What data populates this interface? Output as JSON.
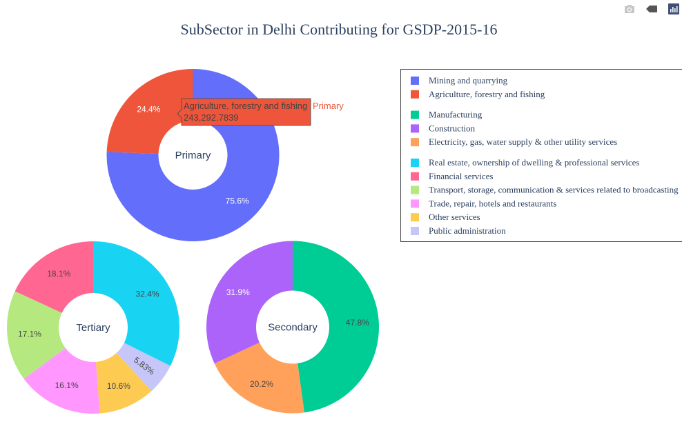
{
  "toolbar": {
    "icons": [
      "camera-icon",
      "tag-icon",
      "plotly-logo-icon"
    ]
  },
  "chart_data": {
    "type": "pie",
    "title": "SubSector in Delhi Contributing for GSDP-2015-16",
    "hole": true,
    "charts": [
      {
        "name": "Primary",
        "slices": [
          {
            "label": "Mining and quarrying",
            "percent": 75.6,
            "color": "#636efa"
          },
          {
            "label": "Agriculture, forestry and fishing",
            "percent": 24.4,
            "color": "#ef553b"
          }
        ]
      },
      {
        "name": "Tertiary",
        "slices": [
          {
            "label": "Real estate, ownership of dwelling & professional services",
            "percent": 32.4,
            "color": "#19d3f3"
          },
          {
            "label": "Public administration",
            "percent": 5.83,
            "color": "#c6c6f9"
          },
          {
            "label": "Other services",
            "percent": 10.6,
            "color": "#fecb52"
          },
          {
            "label": "Trade, repair, hotels and restaurants",
            "percent": 16.1,
            "color": "#ff97ff"
          },
          {
            "label": "Transport, storage, communication & services related to broadcasting",
            "percent": 17.1,
            "color": "#b6e880"
          },
          {
            "label": "Financial services",
            "percent": 18.1,
            "color": "#ff6692"
          }
        ]
      },
      {
        "name": "Secondary",
        "slices": [
          {
            "label": "Manufacturing",
            "percent": 47.8,
            "color": "#00cc96"
          },
          {
            "label": "Electricity, gas, water supply & other utility services",
            "percent": 20.2,
            "color": "#ffa15a"
          },
          {
            "label": "Construction",
            "percent": 31.9,
            "color": "#ab63fa"
          }
        ]
      }
    ],
    "legend": {
      "placement": "right",
      "groups": [
        [
          {
            "label": "Mining and quarrying",
            "color": "#636efa"
          },
          {
            "label": "Agriculture, forestry and fishing",
            "color": "#ef553b"
          }
        ],
        [
          {
            "label": "Manufacturing",
            "color": "#00cc96"
          },
          {
            "label": "Construction",
            "color": "#ab63fa"
          },
          {
            "label": "Electricity, gas, water supply & other utility services",
            "color": "#ffa15a"
          }
        ],
        [
          {
            "label": "Real estate, ownership of dwelling & professional services",
            "color": "#19d3f3"
          },
          {
            "label": "Financial services",
            "color": "#ff6692"
          },
          {
            "label": "Transport, storage, communication & services related to broadcasting",
            "color": "#b6e880"
          },
          {
            "label": "Trade, repair, hotels and restaurants",
            "color": "#ff97ff"
          },
          {
            "label": "Other services",
            "color": "#fecb52"
          },
          {
            "label": "Public administration",
            "color": "#c6c6f9"
          }
        ]
      ]
    },
    "hover": {
      "label": "Agriculture, forestry and fishing",
      "value": "243,292.7839",
      "trace": "Primary",
      "color": "#ef553b"
    }
  }
}
